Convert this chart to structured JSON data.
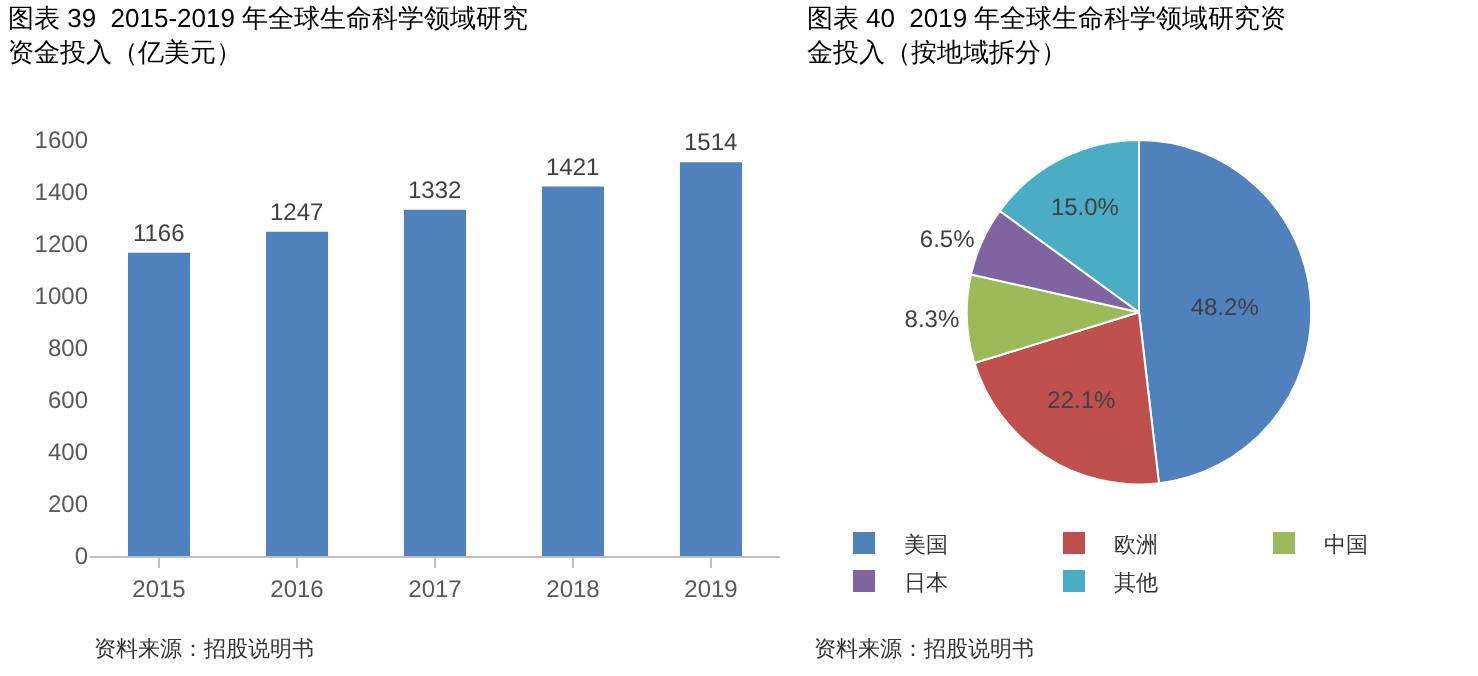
{
  "chart_data": [
    {
      "type": "bar",
      "title": "图表 39  2015-2019 年全球生命科学领域研究资金投入（亿美元）",
      "categories": [
        "2015",
        "2016",
        "2017",
        "2018",
        "2019"
      ],
      "values": [
        1166,
        1247,
        1332,
        1421,
        1514
      ],
      "color": "#4f81bd",
      "ylim": [
        0,
        1600
      ],
      "yticks": [
        0,
        200,
        400,
        600,
        800,
        1000,
        1200,
        1400,
        1600
      ],
      "data_labels": true,
      "grid": false,
      "legend": false,
      "annotations": [
        "资料来源：招股说明书"
      ]
    },
    {
      "type": "pie",
      "title": "图表 40  2019 年全球生命科学领域研究资金投入（按地域拆分）",
      "categories": [
        "美国",
        "欧洲",
        "中国",
        "日本",
        "其他"
      ],
      "values": [
        48.2,
        22.1,
        8.3,
        6.5,
        15.0
      ],
      "colors": [
        "#4f81bd",
        "#c0504d",
        "#9bbb59",
        "#8064a2",
        "#4bacc6"
      ],
      "value_labels": [
        "48.2%",
        "22.1%",
        "8.3%",
        "6.5%",
        "15.0%"
      ],
      "legend": "bottom",
      "annotations": [
        "资料来源：招股说明书"
      ]
    }
  ]
}
